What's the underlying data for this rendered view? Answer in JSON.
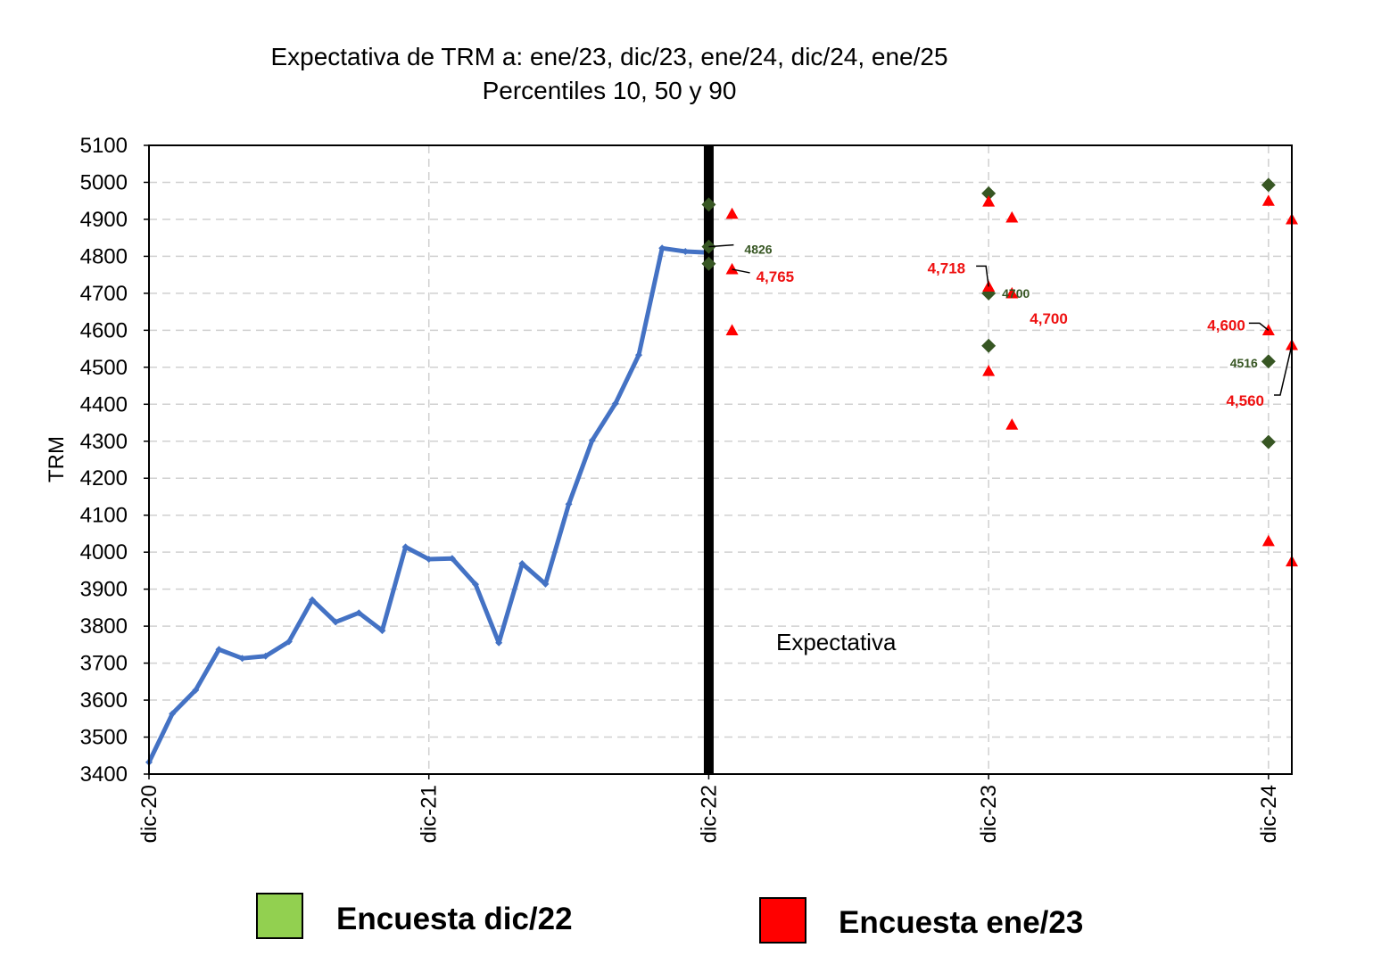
{
  "chart_data": {
    "type": "line",
    "title": "Expectativa de TRM a: ene/23, dic/23, ene/24, dic/24, ene/25",
    "subtitle": "Percentiles 10, 50 y 90",
    "xlabel": "",
    "ylabel": "TRM",
    "ylim": [
      3400,
      5100
    ],
    "yticks": [
      3400,
      3500,
      3600,
      3700,
      3800,
      3900,
      4000,
      4100,
      4200,
      4300,
      4400,
      4500,
      4600,
      4700,
      4800,
      4900,
      5000,
      5100
    ],
    "xlim": [
      "dic-20",
      "ene-25"
    ],
    "xticks": [
      "dic-20",
      "dic-21",
      "dic-22",
      "dic-23",
      "dic-24"
    ],
    "grid": true,
    "divider_at": "dic-22",
    "region_label": "Expectativa",
    "historical": {
      "color": "#4472C4",
      "x": [
        "dic-20",
        "ene-21",
        "feb-21",
        "mar-21",
        "abr-21",
        "may-21",
        "jun-21",
        "jul-21",
        "ago-21",
        "sep-21",
        "oct-21",
        "nov-21",
        "dic-21",
        "ene-22",
        "feb-22",
        "mar-22",
        "abr-22",
        "may-22",
        "jun-22",
        "jul-22",
        "ago-22",
        "sep-22",
        "oct-22",
        "nov-22",
        "dic-22"
      ],
      "y": [
        3432,
        3563,
        3627,
        3737,
        3713,
        3719,
        3758,
        3871,
        3811,
        3836,
        3788,
        4014,
        3981,
        3983,
        3913,
        3755,
        3969,
        3914,
        4130,
        4302,
        4402,
        4533,
        4822,
        4813,
        4810
      ]
    },
    "series": [
      {
        "name": "Encuesta dic/22",
        "color": "#92D050",
        "marker_color": "#375623",
        "marker": "diamond",
        "points": [
          {
            "x": "dic-22",
            "y": 4940
          },
          {
            "x": "dic-22",
            "y": 4826
          },
          {
            "x": "dic-22",
            "y": 4780
          },
          {
            "x": "dic-23",
            "y": 4970
          },
          {
            "x": "dic-23",
            "y": 4700
          },
          {
            "x": "dic-23",
            "y": 4558
          },
          {
            "x": "dic-24",
            "y": 4993
          },
          {
            "x": "dic-24",
            "y": 4516
          },
          {
            "x": "dic-24",
            "y": 4298
          }
        ]
      },
      {
        "name": "Encuesta ene/23",
        "color": "#FF0000",
        "marker_color": "#FF0000",
        "marker": "triangle",
        "points": [
          {
            "x": "ene-23",
            "y": 4915
          },
          {
            "x": "ene-23",
            "y": 4765
          },
          {
            "x": "ene-23",
            "y": 4600
          },
          {
            "x": "dic-23",
            "y": 4948
          },
          {
            "x": "dic-23",
            "y": 4718
          },
          {
            "x": "dic-23",
            "y": 4490
          },
          {
            "x": "ene-24",
            "y": 4905
          },
          {
            "x": "ene-24",
            "y": 4700
          },
          {
            "x": "ene-24",
            "y": 4345
          },
          {
            "x": "dic-24",
            "y": 4950
          },
          {
            "x": "dic-24",
            "y": 4600
          },
          {
            "x": "dic-24",
            "y": 4030
          },
          {
            "x": "ene-25",
            "y": 4900
          },
          {
            "x": "ene-25",
            "y": 4560
          },
          {
            "x": "ene-25",
            "y": 3975
          }
        ]
      }
    ],
    "annotations": [
      {
        "text": "4826",
        "series": "Encuesta dic/22",
        "x": "dic-22",
        "y": 4826
      },
      {
        "text": "4,765",
        "series": "Encuesta ene/23",
        "x": "ene-23",
        "y": 4765
      },
      {
        "text": "4,718",
        "series": "Encuesta ene/23",
        "x": "dic-23",
        "y": 4718
      },
      {
        "text": "4700",
        "series": "Encuesta dic/22",
        "x": "dic-23",
        "y": 4700
      },
      {
        "text": "4,700",
        "series": "Encuesta ene/23",
        "x": "ene-24",
        "y": 4700
      },
      {
        "text": "4,600",
        "series": "Encuesta ene/23",
        "x": "dic-24",
        "y": 4600
      },
      {
        "text": "4516",
        "series": "Encuesta dic/22",
        "x": "dic-24",
        "y": 4516
      },
      {
        "text": "4,560",
        "series": "Encuesta ene/23",
        "x": "ene-25",
        "y": 4560
      }
    ],
    "legend": {
      "placement": "bottom",
      "items": [
        "Encuesta dic/22",
        "Encuesta ene/23"
      ]
    }
  }
}
